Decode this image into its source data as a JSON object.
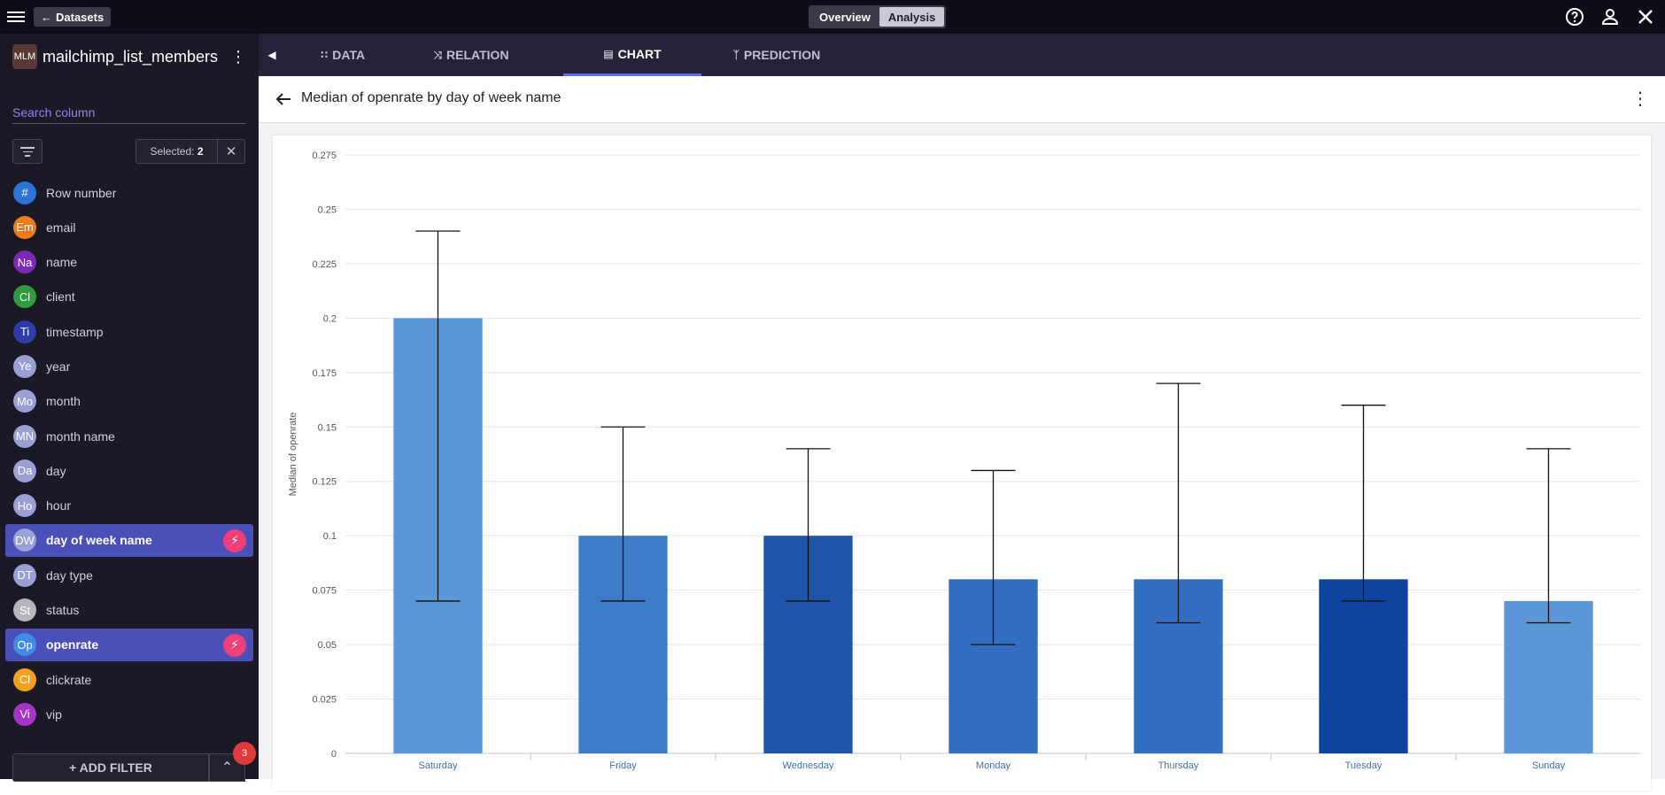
{
  "topbar": {
    "datasets_label": "Datasets",
    "overview_label": "Overview",
    "analysis_label": "Analysis"
  },
  "sidebar": {
    "dataset_badge": "MLM",
    "dataset_name": "mailchimp_list_members",
    "search_placeholder": "Search column",
    "selected_label": "Selected:",
    "selected_count": "2",
    "add_filter_label": "+ ADD FILTER",
    "filter_count": "3",
    "columns": [
      {
        "abbr": "#",
        "label": "Row number",
        "color": "#2d73d6",
        "selected": false
      },
      {
        "abbr": "Em",
        "label": "email",
        "color": "#ef7b1a",
        "selected": false
      },
      {
        "abbr": "Na",
        "label": "name",
        "color": "#7b2bb3",
        "selected": false
      },
      {
        "abbr": "Cl",
        "label": "client",
        "color": "#2f9a3e",
        "selected": false
      },
      {
        "abbr": "Ti",
        "label": "timestamp",
        "color": "#2d3ca8",
        "selected": false
      },
      {
        "abbr": "Ye",
        "label": "year",
        "color": "#9aa0d6",
        "selected": false
      },
      {
        "abbr": "Mo",
        "label": "month",
        "color": "#9aa0d6",
        "selected": false
      },
      {
        "abbr": "MN",
        "label": "month name",
        "color": "#9aa0d6",
        "selected": false
      },
      {
        "abbr": "Da",
        "label": "day",
        "color": "#9aa0d6",
        "selected": false
      },
      {
        "abbr": "Ho",
        "label": "hour",
        "color": "#9aa0d6",
        "selected": false
      },
      {
        "abbr": "DW",
        "label": "day of week name",
        "color": "#9aa0d6",
        "selected": true
      },
      {
        "abbr": "DT",
        "label": "day type",
        "color": "#9aa0d6",
        "selected": false
      },
      {
        "abbr": "St",
        "label": "status",
        "color": "#b5b5bd",
        "selected": false
      },
      {
        "abbr": "Op",
        "label": "openrate",
        "color": "#3f8ce8",
        "selected": true
      },
      {
        "abbr": "Cl",
        "label": "clickrate",
        "color": "#f3a21f",
        "selected": false
      },
      {
        "abbr": "Vi",
        "label": "vip",
        "color": "#a335c8",
        "selected": false
      }
    ]
  },
  "tabs": [
    {
      "label": "DATA",
      "icon": "grid-icon",
      "active": false
    },
    {
      "label": "RELATION",
      "icon": "shuffle-icon",
      "active": false
    },
    {
      "label": "CHART",
      "icon": "bar-chart-icon",
      "active": true
    },
    {
      "label": "PREDICTION",
      "icon": "fork-icon",
      "active": false
    }
  ],
  "chart_header": {
    "title": "Median of openrate by day of week name"
  },
  "chart_data": {
    "type": "bar",
    "title": "",
    "xlabel": "",
    "ylabel": "Median of openrate",
    "ylim": [
      0,
      0.275
    ],
    "yticks": [
      "0",
      "0.025",
      "0.05",
      "0.075",
      "0.1",
      "0.125",
      "0.15",
      "0.175",
      "0.2",
      "0.225",
      "0.25",
      "0.275"
    ],
    "categories": [
      "Saturday",
      "Friday",
      "Wednesday",
      "Monday",
      "Thursday",
      "Tuesday",
      "Sunday"
    ],
    "values": [
      0.2,
      0.1,
      0.1,
      0.08,
      0.08,
      0.08,
      0.07
    ],
    "error_low": [
      0.07,
      0.07,
      0.07,
      0.05,
      0.06,
      0.07,
      0.06
    ],
    "error_high": [
      0.24,
      0.15,
      0.14,
      0.13,
      0.17,
      0.16,
      0.14
    ],
    "colors": [
      "#5b96d6",
      "#3e7bc8",
      "#1f54a8",
      "#336ec0",
      "#336ec0",
      "#0e44a0",
      "#5b96d6"
    ],
    "grid": true
  }
}
